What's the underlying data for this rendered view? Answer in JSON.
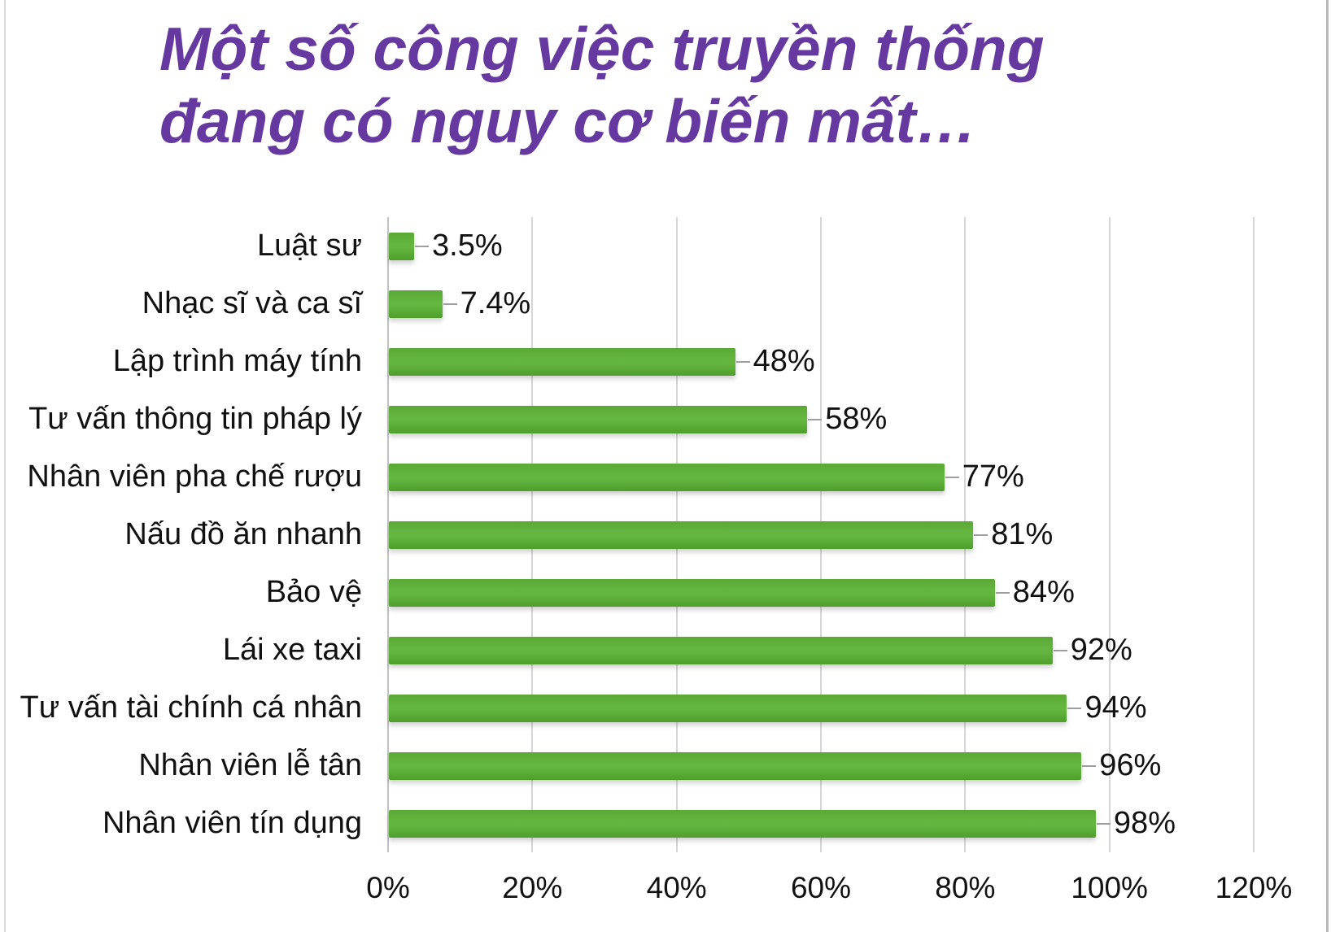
{
  "title": {
    "line1": "Một số công việc truyền thống",
    "line2": "đang có nguy cơ biến mất…",
    "color": "#6639a0"
  },
  "chart_data": {
    "type": "bar",
    "orientation": "horizontal",
    "title": "Một số công việc truyền thống đang có nguy cơ biến mất…",
    "categories": [
      "Luật sư",
      "Nhạc sĩ và ca sĩ",
      "Lập trình máy tính",
      "Tư vấn thông tin pháp lý",
      "Nhân viên pha chế rượu",
      "Nấu đồ ăn nhanh",
      "Bảo vệ",
      "Lái xe taxi",
      "Tư vấn tài chính cá nhân",
      "Nhân viên lễ tân",
      "Nhân viên tín dụng"
    ],
    "values": [
      3.5,
      7.4,
      48,
      58,
      77,
      81,
      84,
      92,
      94,
      96,
      98
    ],
    "value_labels": [
      "3.5%",
      "7.4%",
      "48%",
      "58%",
      "77%",
      "81%",
      "84%",
      "92%",
      "94%",
      "96%",
      "98%"
    ],
    "xlabel": "",
    "ylabel": "",
    "x_tick_labels": [
      "0%",
      "20%",
      "40%",
      "60%",
      "80%",
      "100%",
      "120%"
    ],
    "x_tick_values": [
      0,
      20,
      40,
      60,
      80,
      100,
      120
    ],
    "xlim": [
      0,
      120
    ],
    "grid": "vertical",
    "legend": "none",
    "bar_color_top": "#5ba835",
    "bar_color_mid": "#64b641",
    "bar_color_bottom": "#4f9e2b",
    "gridline_color": "#d6d6d6",
    "axis_line_color": "#bfc1c4",
    "label_color": "#111111"
  }
}
